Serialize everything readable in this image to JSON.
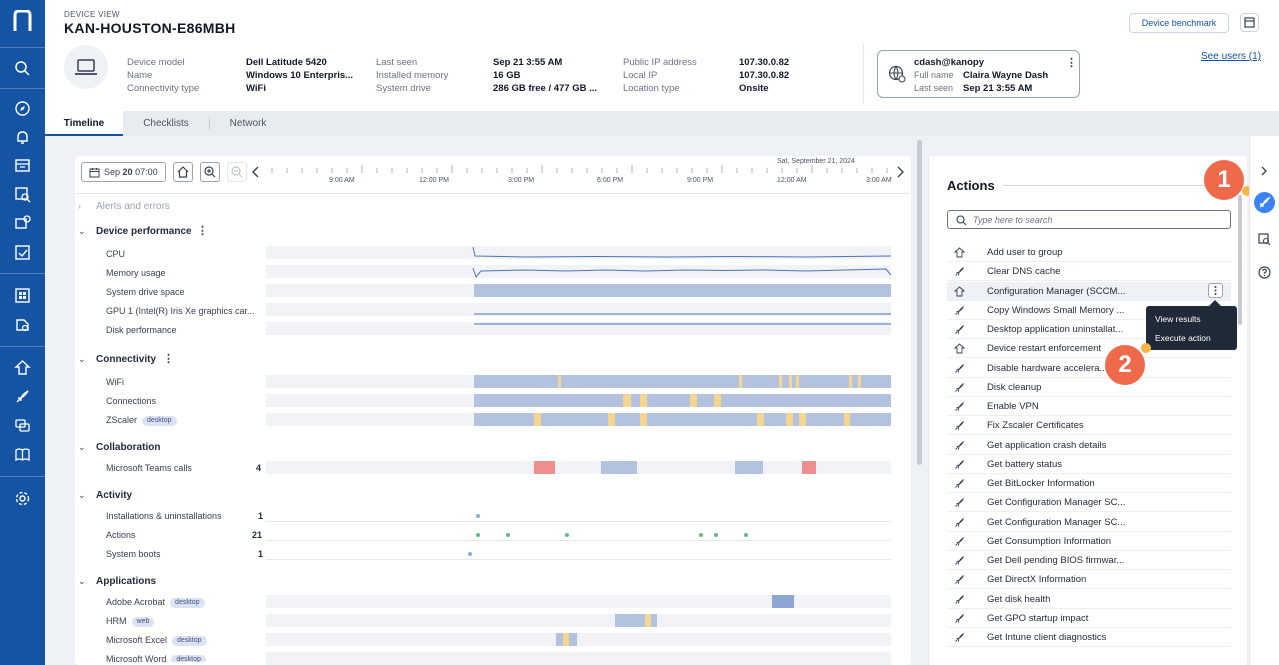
{
  "header": {
    "section_label": "DEVICE VIEW",
    "device_name": "KAN-HOUSTON-E86MBH",
    "benchmark_label": "Device benchmark"
  },
  "device_info": [
    {
      "label": "Device model",
      "value": "Dell Latitude 5420"
    },
    {
      "label": "Name",
      "value": "Windows 10 Enterpris..."
    },
    {
      "label": "Connectivity type",
      "value": "WiFi"
    },
    {
      "label": "Last seen",
      "value": "Sep 21 3:55 AM"
    },
    {
      "label": "Installed memory",
      "value": "16 GB"
    },
    {
      "label": "System drive",
      "value": "286 GB free / 477 GB ..."
    },
    {
      "label": "Public IP address",
      "value": "107.30.0.82"
    },
    {
      "label": "Local IP",
      "value": "107.30.0.82"
    },
    {
      "label": "Location type",
      "value": "Onsite"
    }
  ],
  "user_card": {
    "username": "cdash@kanopy",
    "full_name_label": "Full name",
    "full_name": "Claira Wayne Dash",
    "last_seen_label": "Last seen",
    "last_seen": "Sep 21 3:55 AM"
  },
  "see_users_label": "See users (1)",
  "tabs": [
    "Timeline",
    "Checklists",
    "Network"
  ],
  "timeline": {
    "date_label_prefix": "Sep",
    "date_label_day": "20",
    "date_label_time": "07:00",
    "axis_date": "Sat, September 21, 2024",
    "ticks": [
      "9:00 AM",
      "12:00 PM",
      "3:00 PM",
      "6:00 PM",
      "9:00 PM",
      "12:00 AM",
      "3:00 AM"
    ],
    "sections": {
      "alerts": "Alerts and errors",
      "device_performance": "Device performance",
      "connectivity": "Connectivity",
      "collaboration": "Collaboration",
      "activity": "Activity",
      "applications": "Applications"
    },
    "rows": {
      "cpu": "CPU",
      "memory": "Memory usage",
      "drive": "System drive space",
      "gpu": "GPU 1 (Intel(R) Iris Xe graphics car...",
      "disk": "Disk performance",
      "wifi": "WiFi",
      "connections": "Connections",
      "zscaler": "ZScaler",
      "teams": "Microsoft Teams calls",
      "installs": "Installations & uninstallations",
      "actions": "Actions",
      "boots": "System boots",
      "acrobat": "Adobe Acrobat",
      "hrm": "HRM",
      "excel": "Microsoft Excel",
      "word": "Microsoft Word"
    },
    "counts": {
      "teams": "4",
      "installs": "1",
      "actions": "21",
      "boots": "1"
    },
    "tags": {
      "desktop": "desktop",
      "web": "web"
    }
  },
  "actions_panel": {
    "title": "Actions",
    "search_placeholder": "Type here to search",
    "items": [
      "Add user to group",
      "Clear DNS cache",
      "Configuration Manager (SCCM...",
      "Copy Windows Small Memory ...",
      "Desktop application uninstallat...",
      "Device restart enforcement",
      "Disable hardware accelera...",
      "Disk cleanup",
      "Enable VPN",
      "Fix Zscaler Certificates",
      "Get application crash details",
      "Get battery status",
      "Get BitLocker Information",
      "Get Configuration Manager SC...",
      "Get Configuration Manager SC...",
      "Get Consumption Information",
      "Get Dell pending BIOS firmwar...",
      "Get DirectX Information",
      "Get disk health",
      "Get GPO startup impact",
      "Get Intune client diagnostics"
    ],
    "menu": [
      "View results",
      "Execute action"
    ]
  },
  "callouts": [
    "1",
    "2"
  ],
  "colors": {
    "nav": "#1554a3",
    "bar_blue": "#b3c3df",
    "bar_yellow": "#f6d58f",
    "bar_red": "#ef8e8e",
    "callout": "#ee6a4a",
    "accent": "#3b82f6"
  }
}
